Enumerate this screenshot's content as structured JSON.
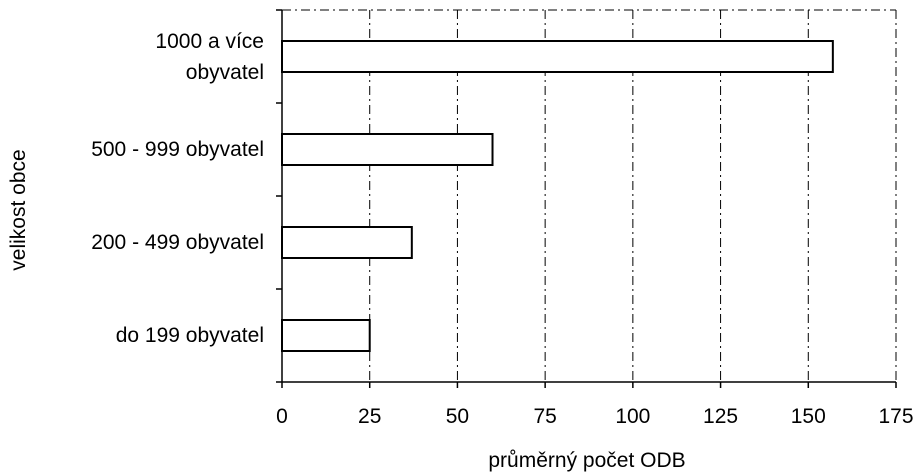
{
  "chart_data": {
    "type": "bar",
    "orientation": "horizontal",
    "xlabel": "průměrný počet ODB",
    "ylabel": "velikost obce",
    "xlim": [
      0,
      175
    ],
    "xticks": [
      0,
      25,
      50,
      75,
      100,
      125,
      150,
      175
    ],
    "grid": "vertical dashed",
    "legend": "none",
    "categories": [
      {
        "lines": [
          "1000 a více",
          "obyvatel"
        ],
        "value": 157
      },
      {
        "lines": [
          "500 - 999 obyvatel"
        ],
        "value": 60
      },
      {
        "lines": [
          "200 - 499 obyvatel"
        ],
        "value": 37
      },
      {
        "lines": [
          "do 199 obyvatel"
        ],
        "value": 25
      }
    ],
    "colors": {
      "bar_fill": "#ffffff",
      "bar_stroke": "#000000",
      "grid": "#000000"
    }
  }
}
